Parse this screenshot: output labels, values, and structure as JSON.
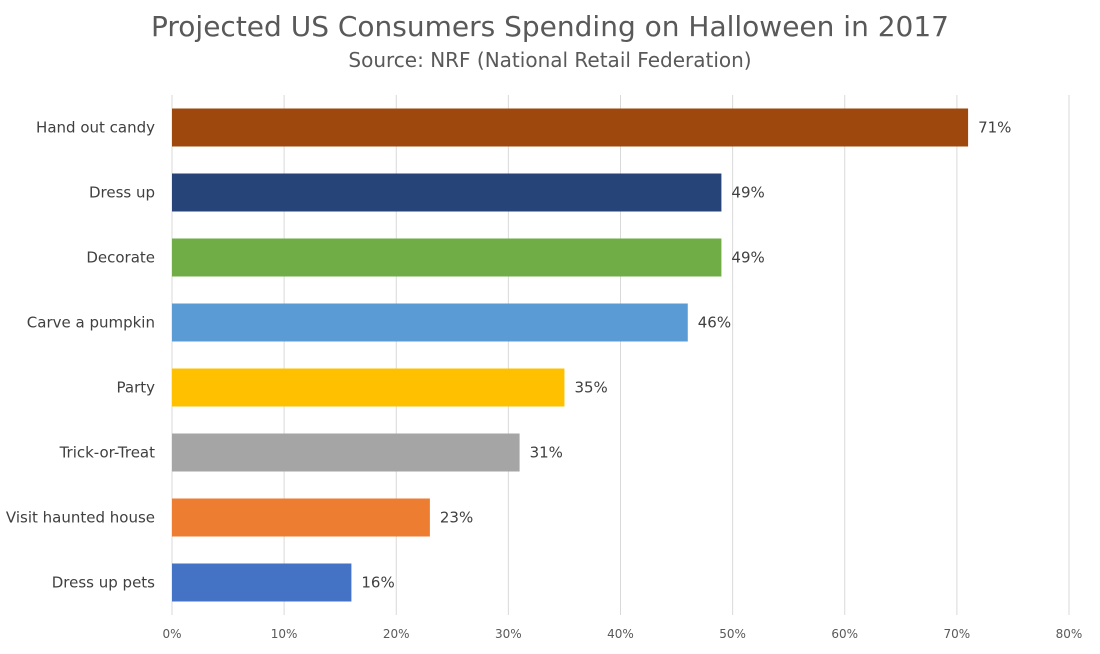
{
  "chart_data": {
    "type": "bar",
    "orientation": "horizontal",
    "title": "Projected US Consumers Spending on Halloween in 2017",
    "subtitle": "Source: NRF (National Retail Federation)",
    "categories": [
      "Hand out candy",
      "Dress up",
      "Decorate",
      "Carve a pumpkin",
      "Party",
      "Trick-or-Treat",
      "Visit haunted house",
      "Dress up pets"
    ],
    "values": [
      71,
      49,
      49,
      46,
      35,
      31,
      23,
      16
    ],
    "data_labels": [
      "71%",
      "49%",
      "49%",
      "46%",
      "35%",
      "31%",
      "23%",
      "16%"
    ],
    "colors": [
      "#9E480E",
      "#264478",
      "#70AD47",
      "#5B9BD5",
      "#FFC000",
      "#A5A5A5",
      "#ED7D31",
      "#4472C4"
    ],
    "xlim": [
      0,
      80
    ],
    "x_ticks": [
      "0%",
      "10%",
      "20%",
      "30%",
      "40%",
      "50%",
      "60%",
      "70%",
      "80%"
    ],
    "xlabel": "",
    "ylabel": "",
    "grid": "vertical",
    "legend": "none"
  }
}
